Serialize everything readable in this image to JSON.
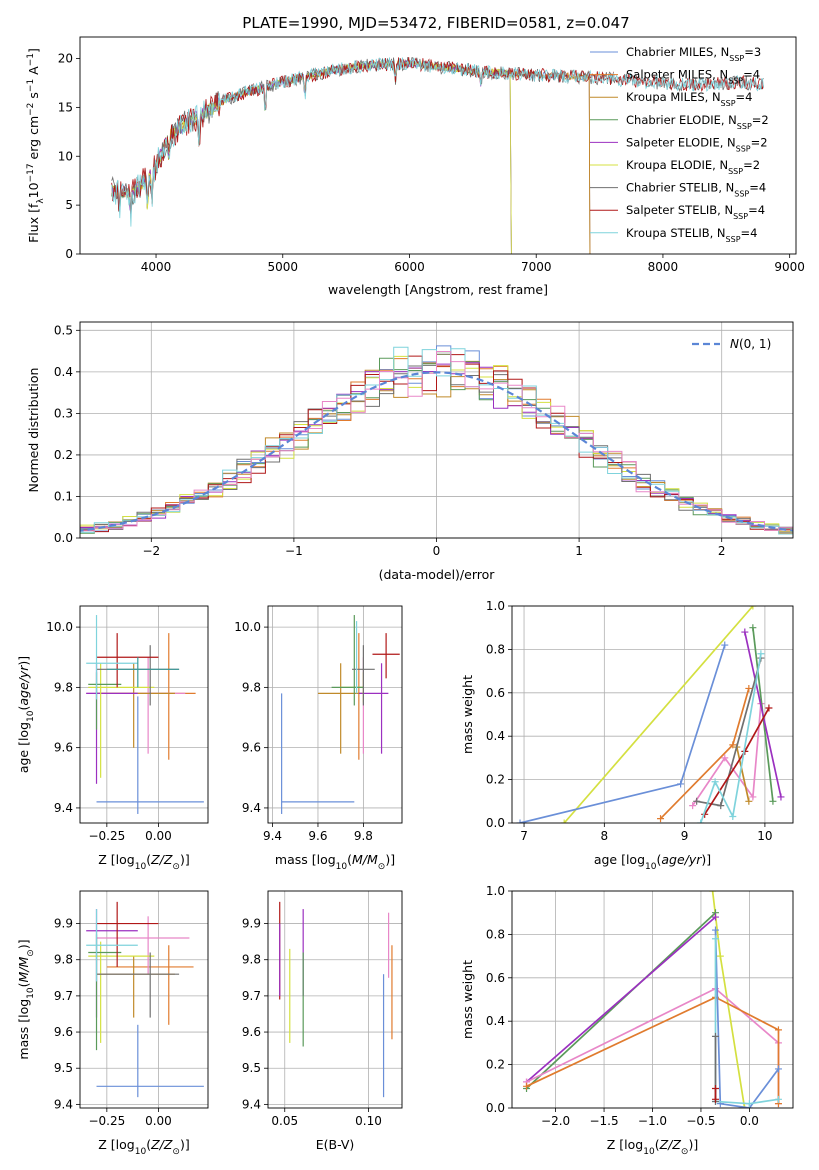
{
  "figure": {
    "title": "PLATE=1990, MJD=53472, FIBERID=0581, z=0.047"
  },
  "chart_data": [
    {
      "id": "spectrum",
      "type": "line",
      "xlabel": "wavelength [Angstrom, rest frame]",
      "ylabel": "Flux [f_λ10^-17 erg cm^-2 s^-1 A^-1]",
      "xlim": [
        3400,
        9050
      ],
      "ylim": [
        0,
        22.2
      ],
      "xticks": [
        4000,
        5000,
        6000,
        7000,
        8000,
        9000
      ],
      "yticks": [
        0,
        5,
        10,
        15,
        20
      ],
      "grid": false,
      "legend_position": "right",
      "continuum": {
        "x": [
          3650,
          3800,
          3950,
          4000,
          4100,
          4250,
          4400,
          4550,
          4700,
          4850,
          5000,
          5200,
          5400,
          5600,
          5800,
          6000,
          6200,
          6400,
          6600,
          6800,
          7000,
          7200,
          7400,
          7600,
          7800,
          8000,
          8200,
          8400,
          8600,
          8800
        ],
        "y": [
          6.5,
          6.2,
          8.0,
          9.0,
          12.0,
          13.5,
          14.5,
          15.8,
          16.5,
          17.0,
          17.6,
          18.2,
          18.8,
          19.2,
          19.4,
          19.5,
          19.2,
          18.9,
          18.6,
          18.5,
          18.3,
          18.2,
          18.1,
          17.9,
          17.7,
          17.5,
          17.3,
          17.4,
          17.6,
          17.3
        ]
      },
      "series": [
        {
          "name": "Chabrier MILES",
          "nssp": "3",
          "color": "#6a8fd8",
          "end": 7420
        },
        {
          "name": "Salpeter MILES",
          "nssp": "4",
          "color": "#e07b2e",
          "end": 7420
        },
        {
          "name": "Kroupa MILES",
          "nssp": "4",
          "color": "#c08a2a",
          "end": 7420
        },
        {
          "name": "Chabrier ELODIE",
          "nssp": "2",
          "color": "#5a9a5a",
          "end": 6800
        },
        {
          "name": "Salpeter ELODIE",
          "nssp": "2",
          "color": "#9b30c0",
          "end": 6800
        },
        {
          "name": "Kroupa ELODIE",
          "nssp": "2",
          "color": "#d4e040",
          "end": 6800
        },
        {
          "name": "Chabrier STELIB",
          "nssp": "4",
          "color": "#707070",
          "end": 8800
        },
        {
          "name": "Salpeter STELIB",
          "nssp": "4",
          "color": "#b01818",
          "end": 8800
        },
        {
          "name": "Kroupa STELIB",
          "nssp": "4",
          "color": "#7fd3dc",
          "end": 8800
        }
      ]
    },
    {
      "id": "residuals",
      "type": "line",
      "xlabel": "(data-model)/error",
      "ylabel": "Normed distribution",
      "xlim": [
        -2.5,
        2.5
      ],
      "ylim": [
        0,
        0.52
      ],
      "xticks": [
        -2,
        -1,
        0,
        1,
        2
      ],
      "yticks": [
        0.0,
        0.1,
        0.2,
        0.3,
        0.4,
        0.5
      ],
      "grid": true,
      "legend_position": "top-right",
      "normal_label": "N(0, 1)",
      "normal_color": "#5b86d6",
      "bin_width": 0.1,
      "hist_colors": [
        "#6a8fd8",
        "#e07b2e",
        "#c08a2a",
        "#5a9a5a",
        "#9b30c0",
        "#d4e040",
        "#707070",
        "#b01818",
        "#7fd3dc",
        "#e887c8"
      ]
    },
    {
      "id": "age-vs-Z",
      "type": "scatter",
      "xlabel": "Z [log10(Z/Z⊙)]",
      "ylabel": "age [log10(age/yr)]",
      "xlim": [
        -0.38,
        0.24
      ],
      "ylim": [
        9.35,
        10.07
      ],
      "xticks": [
        -0.25,
        0.0
      ],
      "xticklabels": [
        "−0.25",
        "0.00"
      ],
      "yticks": [
        9.4,
        9.6,
        9.8,
        10.0
      ],
      "grid": true,
      "errorbars": [
        {
          "color": "#6a8fd8",
          "x": -0.1,
          "xerr": [
            0.2,
            0.32
          ],
          "y": 9.42,
          "yerr": [
            0.04,
            0.35
          ]
        },
        {
          "color": "#e07b2e",
          "x": 0.05,
          "xerr": [
            0.35,
            0.13
          ],
          "y": 9.78,
          "yerr": [
            0.22,
            0.2
          ]
        },
        {
          "color": "#e887c8",
          "x": -0.05,
          "xerr": [
            0.3,
            0.18
          ],
          "y": 9.78,
          "yerr": [
            0.2,
            0.12
          ]
        },
        {
          "color": "#c08a2a",
          "x": -0.12,
          "xerr": [
            0.18,
            0.2
          ],
          "y": 9.78,
          "yerr": [
            0.18,
            0.1
          ]
        },
        {
          "color": "#9b30c0",
          "x": -0.3,
          "xerr": [
            0.05,
            0.2
          ],
          "y": 9.78,
          "yerr": [
            0.3,
            0.1
          ]
        },
        {
          "color": "#d4e040",
          "x": -0.28,
          "xerr": [
            0.06,
            0.26
          ],
          "y": 9.8,
          "yerr": [
            0.3,
            0.08
          ]
        },
        {
          "color": "#5a9a5a",
          "x": -0.3,
          "xerr": [
            0.04,
            0.12
          ],
          "y": 9.81,
          "yerr": [
            0.15,
            0.04
          ]
        },
        {
          "color": "#707070",
          "x": -0.04,
          "xerr": [
            0.26,
            0.14
          ],
          "y": 9.86,
          "yerr": [
            0.12,
            0.08
          ]
        },
        {
          "color": "#b01818",
          "x": -0.2,
          "xerr": [
            0.1,
            0.2
          ],
          "y": 9.9,
          "yerr": [
            0.1,
            0.08
          ]
        },
        {
          "color": "#7fd3dc",
          "x": -0.3,
          "xerr": [
            0.05,
            0.2
          ],
          "y": 9.88,
          "yerr": [
            0.12,
            0.16
          ]
        },
        {
          "color": "#3a9a9a",
          "x": -0.1,
          "xerr": [
            0.15,
            0.2
          ],
          "y": 9.86,
          "yerr": [
            0.06,
            0.04
          ]
        }
      ]
    },
    {
      "id": "age-vs-mass",
      "type": "scatter",
      "xlabel": "mass [log10(M/M⊙)]",
      "ylabel": "",
      "xlim": [
        9.38,
        9.97
      ],
      "ylim": [
        9.35,
        10.07
      ],
      "xticks": [
        9.4,
        9.6,
        9.8
      ],
      "yticks": [
        9.4,
        9.6,
        9.8,
        10.0
      ],
      "grid": true,
      "errorbars": [
        {
          "color": "#6a8fd8",
          "x": 9.44,
          "xerr": [
            0.0,
            0.32
          ],
          "y": 9.42,
          "yerr": [
            0.04,
            0.36
          ]
        },
        {
          "color": "#e07b2e",
          "x": 9.78,
          "xerr": [
            0.0,
            0.0
          ],
          "y": 9.78,
          "yerr": [
            0.22,
            0.2
          ]
        },
        {
          "color": "#e887c8",
          "x": 9.8,
          "xerr": [
            0.0,
            0.0
          ],
          "y": 9.78,
          "yerr": [
            0.2,
            0.12
          ]
        },
        {
          "color": "#c08a2a",
          "x": 9.7,
          "xerr": [
            0.1,
            0.1
          ],
          "y": 9.78,
          "yerr": [
            0.2,
            0.1
          ]
        },
        {
          "color": "#9b30c0",
          "x": 9.88,
          "xerr": [
            0.1,
            0.03
          ],
          "y": 9.78,
          "yerr": [
            0.2,
            0.1
          ]
        },
        {
          "color": "#d4e040",
          "x": 9.8,
          "xerr": [
            0.1,
            0.0
          ],
          "y": 9.8,
          "yerr": [
            0.05,
            0.05
          ]
        },
        {
          "color": "#5a9a5a",
          "x": 9.76,
          "xerr": [
            0.1,
            0.04
          ],
          "y": 9.8,
          "yerr": [
            0.06,
            0.24
          ]
        },
        {
          "color": "#707070",
          "x": 9.8,
          "xerr": [
            0.05,
            0.05
          ],
          "y": 9.86,
          "yerr": [
            0.12,
            0.08
          ]
        },
        {
          "color": "#b01818",
          "x": 9.9,
          "xerr": [
            0.06,
            0.06
          ],
          "y": 9.91,
          "yerr": [
            0.08,
            0.07
          ]
        },
        {
          "color": "#7fd3dc",
          "x": 9.77,
          "xerr": [
            0.0,
            0.0
          ],
          "y": 9.9,
          "yerr": [
            0.12,
            0.12
          ]
        }
      ]
    },
    {
      "id": "massweight-vs-age",
      "type": "line",
      "xlabel": "age [log10(age/yr)]",
      "ylabel": "mass weight",
      "xlim": [
        6.85,
        10.35
      ],
      "ylim": [
        0,
        1.0
      ],
      "xticks": [
        7,
        8,
        9,
        10
      ],
      "yticks": [
        0.0,
        0.2,
        0.4,
        0.6,
        0.8,
        1.0
      ],
      "grid": true,
      "series": [
        {
          "color": "#d4e040",
          "x": [
            7.5,
            9.85
          ],
          "y": [
            0.0,
            1.0
          ]
        },
        {
          "color": "#6a8fd8",
          "x": [
            6.95,
            8.95,
            9.5
          ],
          "y": [
            0.0,
            0.18,
            0.82
          ]
        },
        {
          "color": "#e07b2e",
          "x": [
            8.7,
            9.6,
            9.8
          ],
          "y": [
            0.02,
            0.36,
            0.62
          ]
        },
        {
          "color": "#e887c8",
          "x": [
            9.1,
            9.5,
            9.85,
            9.95
          ],
          "y": [
            0.08,
            0.3,
            0.12,
            0.55
          ]
        },
        {
          "color": "#c08a2a",
          "x": [
            9.65,
            9.8
          ],
          "y": [
            0.35,
            0.1
          ]
        },
        {
          "color": "#5a9a5a",
          "x": [
            9.85,
            10.1
          ],
          "y": [
            0.9,
            0.1
          ]
        },
        {
          "color": "#9b30c0",
          "x": [
            9.75,
            10.2
          ],
          "y": [
            0.88,
            0.12
          ]
        },
        {
          "color": "#707070",
          "x": [
            9.15,
            9.45,
            9.95
          ],
          "y": [
            0.1,
            0.08,
            0.76
          ]
        },
        {
          "color": "#b01818",
          "x": [
            9.25,
            9.75,
            10.05
          ],
          "y": [
            0.04,
            0.33,
            0.53
          ]
        },
        {
          "color": "#7fd3dc",
          "x": [
            9.2,
            9.38,
            9.6,
            9.95
          ],
          "y": [
            0.0,
            0.19,
            0.03,
            0.78
          ]
        }
      ]
    },
    {
      "id": "mass-vs-Z",
      "type": "scatter",
      "xlabel": "Z [log10(Z/Z⊙)]",
      "ylabel": "mass [log10(M/M⊙)]",
      "xlim": [
        -0.38,
        0.24
      ],
      "ylim": [
        9.39,
        9.99
      ],
      "xticks": [
        -0.25,
        0.0
      ],
      "xticklabels": [
        "−0.25",
        "0.00"
      ],
      "yticks": [
        9.4,
        9.5,
        9.6,
        9.7,
        9.8,
        9.9
      ],
      "grid": true,
      "errorbars": [
        {
          "color": "#6a8fd8",
          "x": -0.1,
          "xerr": [
            0.2,
            0.32
          ],
          "y": 9.45,
          "yerr": [
            0.03,
            0.17
          ]
        },
        {
          "color": "#e07b2e",
          "x": 0.05,
          "xerr": [
            0.3,
            0.12
          ],
          "y": 9.78,
          "yerr": [
            0.16,
            0.06
          ]
        },
        {
          "color": "#e887c8",
          "x": -0.05,
          "xerr": [
            0.25,
            0.2
          ],
          "y": 9.86,
          "yerr": [
            0.1,
            0.06
          ]
        },
        {
          "color": "#c08a2a",
          "x": -0.12,
          "xerr": [
            0.18,
            0.2
          ],
          "y": 9.76,
          "yerr": [
            0.12,
            0.05
          ]
        },
        {
          "color": "#9b30c0",
          "x": -0.3,
          "xerr": [
            0.05,
            0.2
          ],
          "y": 9.88,
          "yerr": [
            0.24,
            0.06
          ]
        },
        {
          "color": "#d4e040",
          "x": -0.28,
          "xerr": [
            0.06,
            0.26
          ],
          "y": 9.81,
          "yerr": [
            0.24,
            0.04
          ]
        },
        {
          "color": "#5a9a5a",
          "x": -0.3,
          "xerr": [
            0.04,
            0.12
          ],
          "y": 9.82,
          "yerr": [
            0.27,
            0.05
          ]
        },
        {
          "color": "#707070",
          "x": -0.04,
          "xerr": [
            0.26,
            0.14
          ],
          "y": 9.76,
          "yerr": [
            0.12,
            0.06
          ]
        },
        {
          "color": "#b01818",
          "x": -0.2,
          "xerr": [
            0.1,
            0.2
          ],
          "y": 9.9,
          "yerr": [
            0.12,
            0.06
          ]
        },
        {
          "color": "#7fd3dc",
          "x": -0.3,
          "xerr": [
            0.05,
            0.2
          ],
          "y": 9.84,
          "yerr": [
            0.1,
            0.1
          ]
        }
      ]
    },
    {
      "id": "mass-vs-ebv",
      "type": "scatter",
      "xlabel": "E(B-V)",
      "ylabel": "",
      "xlim": [
        0.04,
        0.12
      ],
      "ylim": [
        9.39,
        9.99
      ],
      "xticks": [
        0.05,
        0.1
      ],
      "xticklabels": [
        "0.05",
        "0.10"
      ],
      "yticks": [
        9.4,
        9.5,
        9.6,
        9.7,
        9.8,
        9.9
      ],
      "grid": true,
      "errorbars": [
        {
          "color": "#b01818",
          "x": 0.047,
          "y": 9.83,
          "yerr": [
            0.14,
            0.13
          ]
        },
        {
          "color": "#9b30c0",
          "x": 0.047,
          "y": 9.8,
          "yerr": [
            0.1,
            0.1
          ]
        },
        {
          "color": "#d4e040",
          "x": 0.053,
          "y": 9.7,
          "yerr": [
            0.13,
            0.13
          ]
        },
        {
          "color": "#9b30c0",
          "x": 0.061,
          "y": 9.82,
          "yerr": [
            0.12,
            0.12
          ]
        },
        {
          "color": "#5a9a5a",
          "x": 0.061,
          "y": 9.7,
          "yerr": [
            0.14,
            0.12
          ]
        },
        {
          "color": "#6a8fd8",
          "x": 0.109,
          "y": 9.59,
          "yerr": [
            0.17,
            0.17
          ]
        },
        {
          "color": "#e887c8",
          "x": 0.112,
          "y": 9.84,
          "yerr": [
            0.09,
            0.09
          ]
        },
        {
          "color": "#e07b2e",
          "x": 0.114,
          "y": 9.71,
          "yerr": [
            0.13,
            0.13
          ]
        }
      ]
    },
    {
      "id": "massweight-vs-Z",
      "type": "line",
      "xlabel": "Z [log10(Z/Z⊙)]",
      "ylabel": "mass weight",
      "xlim": [
        -2.45,
        0.45
      ],
      "ylim": [
        0,
        1.0
      ],
      "xticks": [
        -2.0,
        -1.5,
        -1.0,
        -0.5,
        0.0
      ],
      "xticklabels": [
        "−2.0",
        "−1.5",
        "−1.0",
        "−0.5",
        "0.0"
      ],
      "yticks": [
        0.0,
        0.2,
        0.4,
        0.6,
        0.8,
        1.0
      ],
      "grid": true,
      "series": [
        {
          "color": "#d4e040",
          "x": [
            -0.38,
            -0.3,
            -0.05
          ],
          "y": [
            1.0,
            0.7,
            0.0
          ]
        },
        {
          "color": "#5a9a5a",
          "x": [
            -2.3,
            -0.35
          ],
          "y": [
            0.09,
            0.9
          ]
        },
        {
          "color": "#9b30c0",
          "x": [
            -2.3,
            -0.35
          ],
          "y": [
            0.12,
            0.88
          ]
        },
        {
          "color": "#e887c8",
          "x": [
            -2.3,
            -0.35,
            0.3,
            0.3
          ],
          "y": [
            0.12,
            0.55,
            0.3,
            0.02
          ]
        },
        {
          "color": "#e07b2e",
          "x": [
            -2.3,
            -0.35,
            0.3,
            0.3
          ],
          "y": [
            0.1,
            0.51,
            0.36,
            0.02
          ]
        },
        {
          "color": "#6a8fd8",
          "x": [
            -0.35,
            -0.3,
            0.0,
            0.3
          ],
          "y": [
            0.82,
            0.02,
            0.0,
            0.18
          ]
        },
        {
          "color": "#7fd3dc",
          "x": [
            -0.35,
            -0.35,
            0.0,
            0.3
          ],
          "y": [
            0.78,
            0.03,
            0.02,
            0.04
          ]
        },
        {
          "color": "#707070",
          "x": [
            -0.35,
            -0.35
          ],
          "y": [
            0.03,
            0.33
          ]
        },
        {
          "color": "#b01818",
          "x": [
            -0.35,
            -0.35
          ],
          "y": [
            0.04,
            0.09
          ]
        }
      ]
    }
  ]
}
